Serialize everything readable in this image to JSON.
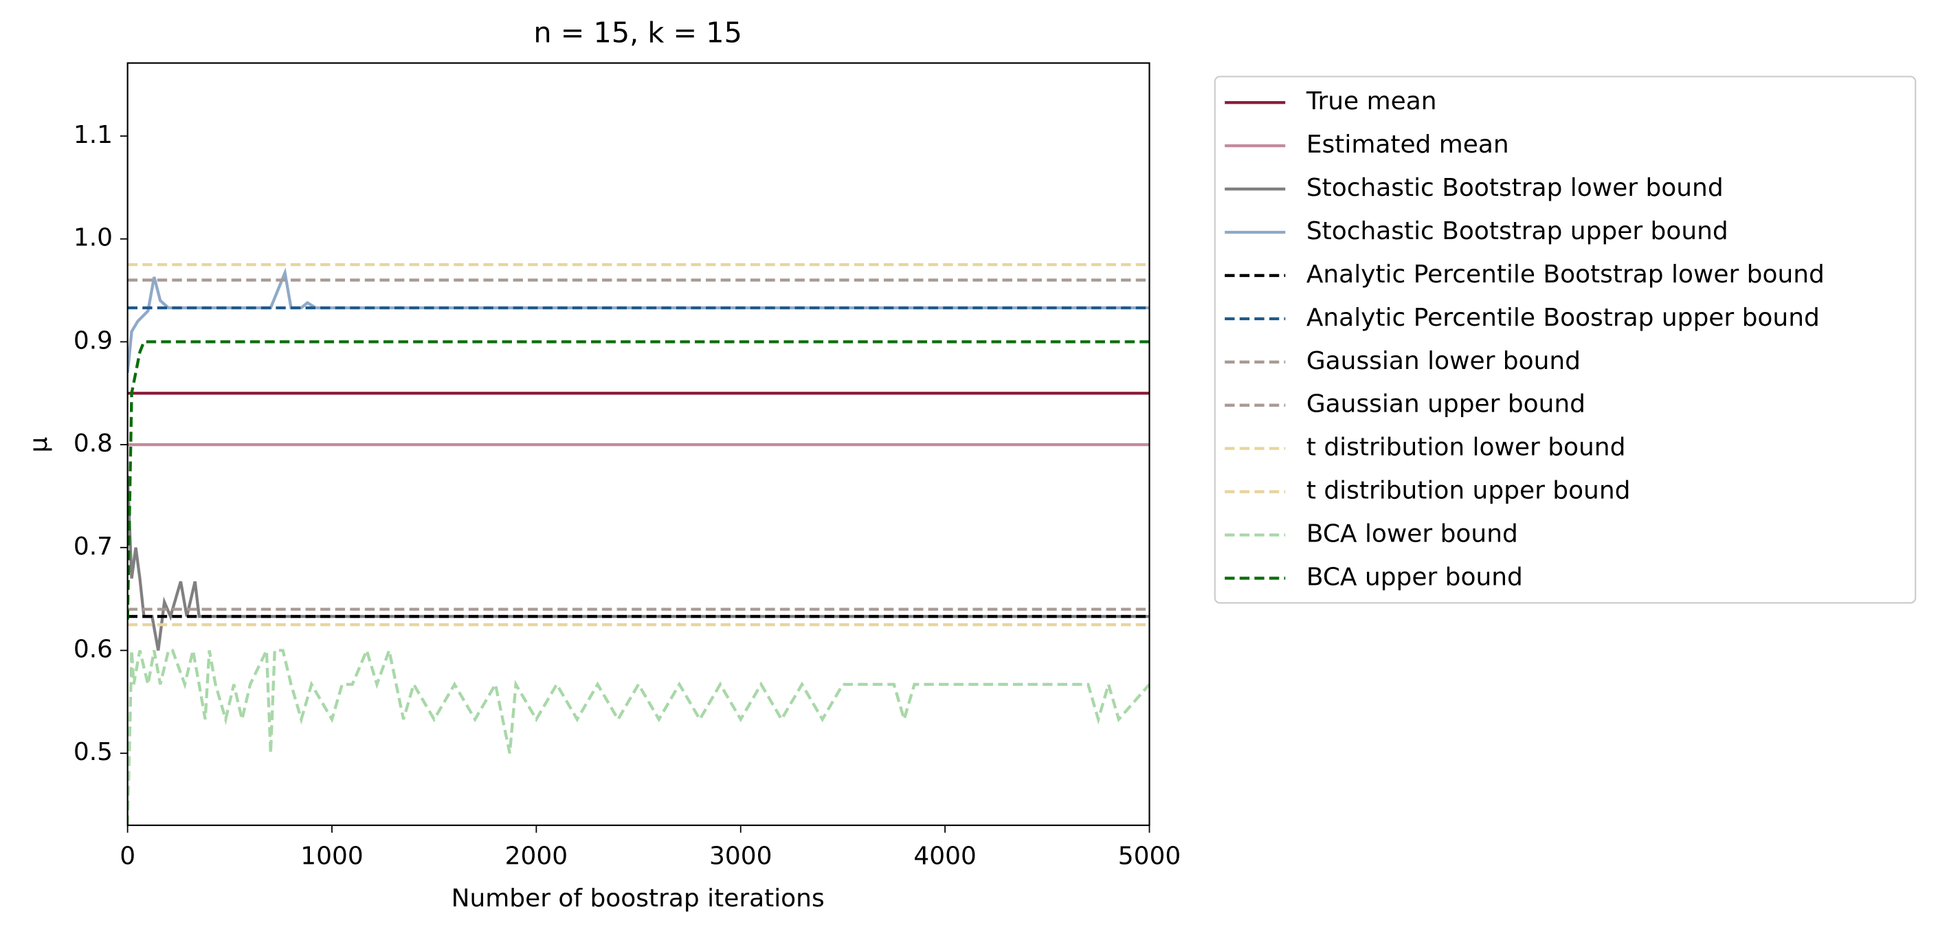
{
  "chart_data": {
    "type": "line",
    "title": "n = 15, k = 15",
    "x_label": "Number of boostrap iterations",
    "y_label": "μ",
    "xlim": [
      0,
      5000
    ],
    "ylim": [
      0.43,
      1.171
    ],
    "xticks": [
      0,
      1000,
      2000,
      3000,
      4000,
      5000
    ],
    "yticks": [
      0.5,
      0.6,
      0.7,
      0.8,
      0.9,
      {
        "value": 1,
        "label": "1.0"
      },
      1.1
    ],
    "legend_loc": "outside upper right",
    "series": [
      {
        "name": "True mean",
        "color": "#8b1a3a",
        "dashed": false,
        "x": [
          0,
          5000
        ],
        "values": [
          0.85,
          0.85
        ]
      },
      {
        "name": "Estimated mean",
        "color": "#c48a9e",
        "dashed": false,
        "x": [
          0,
          5000
        ],
        "values": [
          0.8,
          0.8
        ]
      },
      {
        "name": "Stochastic Bootstrap lower bound",
        "color": "#808080",
        "dashed": false,
        "x": [
          0,
          20,
          40,
          60,
          80,
          120,
          150,
          180,
          210,
          260,
          290,
          330,
          350,
          400,
          5000
        ],
        "values": [
          0.77,
          0.67,
          0.7,
          0.67,
          0.633,
          0.633,
          0.6,
          0.647,
          0.633,
          0.667,
          0.633,
          0.667,
          0.633,
          0.633,
          0.633
        ]
      },
      {
        "name": "Stochastic Bootstrap upper bound",
        "color": "#8fa9c8",
        "dashed": false,
        "x": [
          0,
          20,
          50,
          100,
          130,
          160,
          200,
          700,
          770,
          800,
          850,
          880,
          920,
          5000
        ],
        "values": [
          0.87,
          0.91,
          0.92,
          0.93,
          0.963,
          0.94,
          0.933,
          0.933,
          0.967,
          0.933,
          0.933,
          0.938,
          0.933,
          0.933
        ]
      },
      {
        "name": "Analytic Percentile Bootstrap lower bound",
        "color": "#000000",
        "dashed": true,
        "x": [
          0,
          5000
        ],
        "values": [
          0.633,
          0.633
        ]
      },
      {
        "name": "Analytic Percentile Boostrap upper bound",
        "color": "#1f5a8a",
        "dashed": true,
        "x": [
          0,
          5000
        ],
        "values": [
          0.933,
          0.933
        ]
      },
      {
        "name": "Gaussian lower bound",
        "color": "#a89a94",
        "dashed": true,
        "x": [
          0,
          5000
        ],
        "values": [
          0.64,
          0.64
        ]
      },
      {
        "name": "Gaussian upper bound",
        "color": "#a89a94",
        "dashed": true,
        "x": [
          0,
          5000
        ],
        "values": [
          0.96,
          0.96
        ]
      },
      {
        "name": "t distribution lower bound",
        "color": "#e8d49e",
        "dashed": true,
        "x": [
          0,
          5000
        ],
        "values": [
          0.625,
          0.625
        ]
      },
      {
        "name": "t distribution upper bound",
        "color": "#e8d49e",
        "dashed": true,
        "x": [
          0,
          5000
        ],
        "values": [
          0.975,
          0.975
        ]
      },
      {
        "name": "BCA lower bound",
        "color": "#a8d8a8",
        "dashed": true,
        "x": [
          0,
          20,
          30,
          60,
          100,
          130,
          160,
          200,
          220,
          280,
          320,
          350,
          380,
          400,
          430,
          480,
          520,
          560,
          600,
          680,
          700,
          720,
          760,
          800,
          850,
          900,
          1000,
          1050,
          1100,
          1170,
          1220,
          1280,
          1350,
          1400,
          1500,
          1600,
          1700,
          1800,
          1870,
          1900,
          2000,
          2100,
          2200,
          2300,
          2400,
          2500,
          2600,
          2700,
          2800,
          2900,
          3000,
          3100,
          3200,
          3300,
          3400,
          3500,
          3600,
          3750,
          3800,
          3850,
          4700,
          4750,
          4800,
          4850,
          5000
        ],
        "values": [
          0.43,
          0.6,
          0.567,
          0.6,
          0.567,
          0.6,
          0.567,
          0.6,
          0.6,
          0.567,
          0.6,
          0.567,
          0.533,
          0.6,
          0.567,
          0.533,
          0.567,
          0.533,
          0.567,
          0.6,
          0.5,
          0.6,
          0.6,
          0.567,
          0.533,
          0.567,
          0.533,
          0.567,
          0.567,
          0.6,
          0.567,
          0.6,
          0.533,
          0.567,
          0.533,
          0.567,
          0.533,
          0.567,
          0.5,
          0.567,
          0.533,
          0.567,
          0.533,
          0.567,
          0.533,
          0.567,
          0.533,
          0.567,
          0.533,
          0.567,
          0.533,
          0.567,
          0.533,
          0.567,
          0.533,
          0.567,
          0.567,
          0.567,
          0.533,
          0.567,
          0.567,
          0.533,
          0.567,
          0.533,
          0.567
        ]
      },
      {
        "name": "BCA upper bound",
        "color": "#0a6e0a",
        "dashed": true,
        "x": [
          0,
          20,
          40,
          60,
          80,
          5000
        ],
        "values": [
          0.63,
          0.85,
          0.87,
          0.89,
          0.9,
          0.9
        ]
      }
    ]
  }
}
